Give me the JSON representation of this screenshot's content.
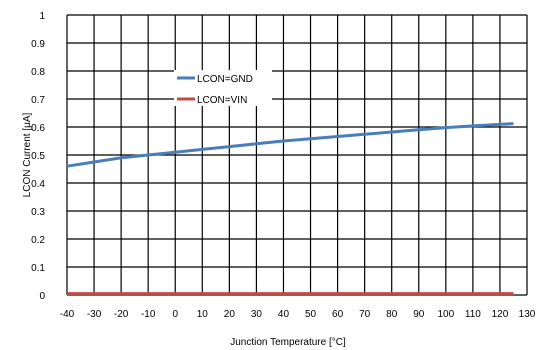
{
  "chart_data": {
    "type": "line",
    "xlabel": "Junction Temperature [°C]",
    "ylabel": "LCON Current [μA]",
    "xlim": [
      -40,
      130
    ],
    "ylim": [
      0,
      1
    ],
    "xticks": [
      -40,
      -30,
      -20,
      -10,
      0,
      10,
      20,
      30,
      40,
      50,
      60,
      70,
      80,
      90,
      100,
      110,
      120,
      130
    ],
    "yticks": [
      0,
      0.1,
      0.2,
      0.3,
      0.4,
      0.5,
      0.6,
      0.7,
      0.8,
      0.9,
      1
    ],
    "ytick_labels": [
      "0",
      "0.1",
      "0.2",
      "0.3",
      "0.4",
      "0.5",
      "0.6",
      "0.7",
      "0.8",
      "0.9",
      "1"
    ],
    "grid": true,
    "legend_position": "inside-upper-left",
    "series": [
      {
        "name": "LCON=GND",
        "color": "#4a7ebb",
        "x": [
          -40,
          -30,
          -20,
          -10,
          0,
          10,
          20,
          30,
          40,
          50,
          60,
          70,
          80,
          90,
          100,
          110,
          125
        ],
        "y": [
          0.46,
          0.475,
          0.49,
          0.5,
          0.51,
          0.52,
          0.53,
          0.54,
          0.55,
          0.558,
          0.566,
          0.574,
          0.582,
          0.59,
          0.598,
          0.604,
          0.612
        ]
      },
      {
        "name": "LCON=VIN",
        "color": "#be4b48",
        "x": [
          -40,
          125
        ],
        "y": [
          0.005,
          0.005
        ]
      }
    ]
  }
}
